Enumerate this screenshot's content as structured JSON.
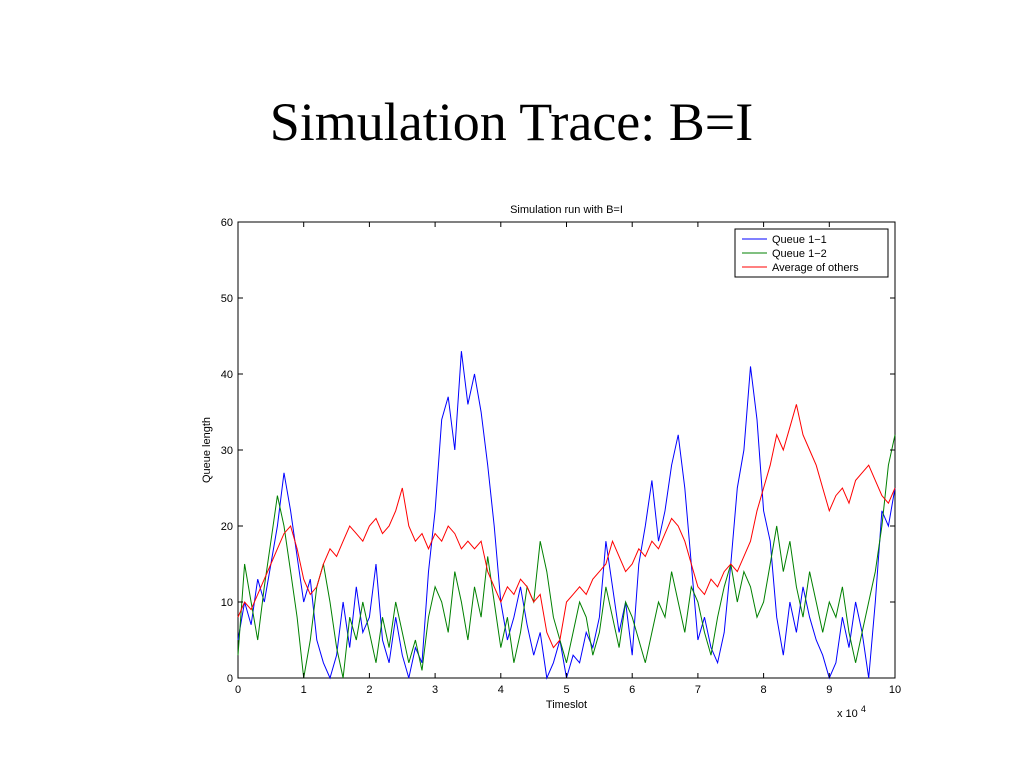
{
  "slide": {
    "title": "Simulation Trace: B=I"
  },
  "chart_data": {
    "type": "line",
    "title": "Simulation run with B=I",
    "xlabel": "Timeslot",
    "ylabel": "Queue length",
    "x_multiplier_label": "x 10",
    "x_multiplier_exponent": "4",
    "xlim": [
      0,
      10
    ],
    "ylim": [
      0,
      60
    ],
    "xticks": [
      0,
      1,
      2,
      3,
      4,
      5,
      6,
      7,
      8,
      9,
      10
    ],
    "yticks": [
      0,
      10,
      20,
      30,
      40,
      50,
      60
    ],
    "grid": false,
    "legend_position": "top-right",
    "series": [
      {
        "name": "Queue 1−1",
        "color": "#0000ff",
        "points": [
          [
            0,
            5
          ],
          [
            0.1,
            10
          ],
          [
            0.2,
            7
          ],
          [
            0.3,
            13
          ],
          [
            0.4,
            10
          ],
          [
            0.5,
            15
          ],
          [
            0.6,
            20
          ],
          [
            0.7,
            27
          ],
          [
            0.8,
            22
          ],
          [
            0.9,
            16
          ],
          [
            1.0,
            10
          ],
          [
            1.1,
            13
          ],
          [
            1.2,
            5
          ],
          [
            1.3,
            2
          ],
          [
            1.4,
            0
          ],
          [
            1.5,
            3
          ],
          [
            1.6,
            10
          ],
          [
            1.7,
            4
          ],
          [
            1.8,
            12
          ],
          [
            1.9,
            6
          ],
          [
            2.0,
            8
          ],
          [
            2.1,
            15
          ],
          [
            2.2,
            5
          ],
          [
            2.3,
            2
          ],
          [
            2.4,
            8
          ],
          [
            2.5,
            3
          ],
          [
            2.6,
            0
          ],
          [
            2.7,
            4
          ],
          [
            2.8,
            2
          ],
          [
            2.9,
            14
          ],
          [
            3.0,
            22
          ],
          [
            3.1,
            34
          ],
          [
            3.2,
            37
          ],
          [
            3.3,
            30
          ],
          [
            3.4,
            43
          ],
          [
            3.5,
            36
          ],
          [
            3.6,
            40
          ],
          [
            3.7,
            35
          ],
          [
            3.8,
            28
          ],
          [
            3.9,
            20
          ],
          [
            4.0,
            10
          ],
          [
            4.1,
            5
          ],
          [
            4.2,
            8
          ],
          [
            4.3,
            12
          ],
          [
            4.4,
            7
          ],
          [
            4.5,
            3
          ],
          [
            4.6,
            6
          ],
          [
            4.7,
            0
          ],
          [
            4.8,
            2
          ],
          [
            4.9,
            5
          ],
          [
            5.0,
            0
          ],
          [
            5.1,
            3
          ],
          [
            5.2,
            2
          ],
          [
            5.3,
            6
          ],
          [
            5.4,
            4
          ],
          [
            5.5,
            8
          ],
          [
            5.6,
            18
          ],
          [
            5.7,
            12
          ],
          [
            5.8,
            6
          ],
          [
            5.9,
            10
          ],
          [
            6.0,
            3
          ],
          [
            6.1,
            15
          ],
          [
            6.2,
            20
          ],
          [
            6.3,
            26
          ],
          [
            6.4,
            18
          ],
          [
            6.5,
            22
          ],
          [
            6.6,
            28
          ],
          [
            6.7,
            32
          ],
          [
            6.8,
            25
          ],
          [
            6.9,
            15
          ],
          [
            7.0,
            5
          ],
          [
            7.1,
            8
          ],
          [
            7.2,
            4
          ],
          [
            7.3,
            2
          ],
          [
            7.4,
            6
          ],
          [
            7.5,
            15
          ],
          [
            7.6,
            25
          ],
          [
            7.7,
            30
          ],
          [
            7.8,
            41
          ],
          [
            7.9,
            34
          ],
          [
            8.0,
            22
          ],
          [
            8.1,
            18
          ],
          [
            8.2,
            8
          ],
          [
            8.3,
            3
          ],
          [
            8.4,
            10
          ],
          [
            8.5,
            6
          ],
          [
            8.6,
            12
          ],
          [
            8.7,
            8
          ],
          [
            8.8,
            5
          ],
          [
            8.9,
            3
          ],
          [
            9.0,
            0
          ],
          [
            9.1,
            2
          ],
          [
            9.2,
            8
          ],
          [
            9.3,
            4
          ],
          [
            9.4,
            10
          ],
          [
            9.5,
            6
          ],
          [
            9.6,
            0
          ],
          [
            9.7,
            10
          ],
          [
            9.8,
            22
          ],
          [
            9.9,
            20
          ],
          [
            10.0,
            25
          ]
        ]
      },
      {
        "name": "Queue 1−2",
        "color": "#008000",
        "points": [
          [
            0,
            3
          ],
          [
            0.1,
            15
          ],
          [
            0.2,
            10
          ],
          [
            0.3,
            5
          ],
          [
            0.4,
            12
          ],
          [
            0.5,
            18
          ],
          [
            0.6,
            24
          ],
          [
            0.7,
            20
          ],
          [
            0.8,
            14
          ],
          [
            0.9,
            8
          ],
          [
            1.0,
            0
          ],
          [
            1.1,
            5
          ],
          [
            1.2,
            12
          ],
          [
            1.3,
            15
          ],
          [
            1.4,
            10
          ],
          [
            1.5,
            4
          ],
          [
            1.6,
            0
          ],
          [
            1.7,
            8
          ],
          [
            1.8,
            5
          ],
          [
            1.9,
            10
          ],
          [
            2.0,
            6
          ],
          [
            2.1,
            2
          ],
          [
            2.2,
            8
          ],
          [
            2.3,
            4
          ],
          [
            2.4,
            10
          ],
          [
            2.5,
            6
          ],
          [
            2.6,
            2
          ],
          [
            2.7,
            5
          ],
          [
            2.8,
            1
          ],
          [
            2.9,
            8
          ],
          [
            3.0,
            12
          ],
          [
            3.1,
            10
          ],
          [
            3.2,
            6
          ],
          [
            3.3,
            14
          ],
          [
            3.4,
            10
          ],
          [
            3.5,
            5
          ],
          [
            3.6,
            12
          ],
          [
            3.7,
            8
          ],
          [
            3.8,
            16
          ],
          [
            3.9,
            10
          ],
          [
            4.0,
            4
          ],
          [
            4.1,
            8
          ],
          [
            4.2,
            2
          ],
          [
            4.3,
            6
          ],
          [
            4.4,
            12
          ],
          [
            4.5,
            10
          ],
          [
            4.6,
            18
          ],
          [
            4.7,
            14
          ],
          [
            4.8,
            8
          ],
          [
            4.9,
            5
          ],
          [
            5.0,
            2
          ],
          [
            5.1,
            6
          ],
          [
            5.2,
            10
          ],
          [
            5.3,
            8
          ],
          [
            5.4,
            3
          ],
          [
            5.5,
            6
          ],
          [
            5.6,
            12
          ],
          [
            5.7,
            8
          ],
          [
            5.8,
            4
          ],
          [
            5.9,
            10
          ],
          [
            6.0,
            8
          ],
          [
            6.1,
            5
          ],
          [
            6.2,
            2
          ],
          [
            6.3,
            6
          ],
          [
            6.4,
            10
          ],
          [
            6.5,
            8
          ],
          [
            6.6,
            14
          ],
          [
            6.7,
            10
          ],
          [
            6.8,
            6
          ],
          [
            6.9,
            12
          ],
          [
            7.0,
            10
          ],
          [
            7.1,
            6
          ],
          [
            7.2,
            3
          ],
          [
            7.3,
            8
          ],
          [
            7.4,
            12
          ],
          [
            7.5,
            15
          ],
          [
            7.6,
            10
          ],
          [
            7.7,
            14
          ],
          [
            7.8,
            12
          ],
          [
            7.9,
            8
          ],
          [
            8.0,
            10
          ],
          [
            8.1,
            15
          ],
          [
            8.2,
            20
          ],
          [
            8.3,
            14
          ],
          [
            8.4,
            18
          ],
          [
            8.5,
            12
          ],
          [
            8.6,
            8
          ],
          [
            8.7,
            14
          ],
          [
            8.8,
            10
          ],
          [
            8.9,
            6
          ],
          [
            9.0,
            10
          ],
          [
            9.1,
            8
          ],
          [
            9.2,
            12
          ],
          [
            9.3,
            6
          ],
          [
            9.4,
            2
          ],
          [
            9.5,
            6
          ],
          [
            9.6,
            10
          ],
          [
            9.7,
            14
          ],
          [
            9.8,
            20
          ],
          [
            9.9,
            28
          ],
          [
            10.0,
            32
          ]
        ]
      },
      {
        "name": "Average of others",
        "color": "#ff0000",
        "points": [
          [
            0,
            8
          ],
          [
            0.1,
            10
          ],
          [
            0.2,
            9
          ],
          [
            0.3,
            11
          ],
          [
            0.4,
            13
          ],
          [
            0.5,
            15
          ],
          [
            0.6,
            17
          ],
          [
            0.7,
            19
          ],
          [
            0.8,
            20
          ],
          [
            0.9,
            17
          ],
          [
            1.0,
            13
          ],
          [
            1.1,
            11
          ],
          [
            1.2,
            12
          ],
          [
            1.3,
            15
          ],
          [
            1.4,
            17
          ],
          [
            1.5,
            16
          ],
          [
            1.6,
            18
          ],
          [
            1.7,
            20
          ],
          [
            1.8,
            19
          ],
          [
            1.9,
            18
          ],
          [
            2.0,
            20
          ],
          [
            2.1,
            21
          ],
          [
            2.2,
            19
          ],
          [
            2.3,
            20
          ],
          [
            2.4,
            22
          ],
          [
            2.5,
            25
          ],
          [
            2.6,
            20
          ],
          [
            2.7,
            18
          ],
          [
            2.8,
            19
          ],
          [
            2.9,
            17
          ],
          [
            3.0,
            19
          ],
          [
            3.1,
            18
          ],
          [
            3.2,
            20
          ],
          [
            3.3,
            19
          ],
          [
            3.4,
            17
          ],
          [
            3.5,
            18
          ],
          [
            3.6,
            17
          ],
          [
            3.7,
            18
          ],
          [
            3.8,
            14
          ],
          [
            3.9,
            12
          ],
          [
            4.0,
            10
          ],
          [
            4.1,
            12
          ],
          [
            4.2,
            11
          ],
          [
            4.3,
            13
          ],
          [
            4.4,
            12
          ],
          [
            4.5,
            10
          ],
          [
            4.6,
            11
          ],
          [
            4.7,
            6
          ],
          [
            4.8,
            4
          ],
          [
            4.9,
            5
          ],
          [
            5.0,
            10
          ],
          [
            5.1,
            11
          ],
          [
            5.2,
            12
          ],
          [
            5.3,
            11
          ],
          [
            5.4,
            13
          ],
          [
            5.5,
            14
          ],
          [
            5.6,
            15
          ],
          [
            5.7,
            18
          ],
          [
            5.8,
            16
          ],
          [
            5.9,
            14
          ],
          [
            6.0,
            15
          ],
          [
            6.1,
            17
          ],
          [
            6.2,
            16
          ],
          [
            6.3,
            18
          ],
          [
            6.4,
            17
          ],
          [
            6.5,
            19
          ],
          [
            6.6,
            21
          ],
          [
            6.7,
            20
          ],
          [
            6.8,
            18
          ],
          [
            6.9,
            15
          ],
          [
            7.0,
            12
          ],
          [
            7.1,
            11
          ],
          [
            7.2,
            13
          ],
          [
            7.3,
            12
          ],
          [
            7.4,
            14
          ],
          [
            7.5,
            15
          ],
          [
            7.6,
            14
          ],
          [
            7.7,
            16
          ],
          [
            7.8,
            18
          ],
          [
            7.9,
            22
          ],
          [
            8.0,
            25
          ],
          [
            8.1,
            28
          ],
          [
            8.2,
            32
          ],
          [
            8.3,
            30
          ],
          [
            8.4,
            33
          ],
          [
            8.5,
            36
          ],
          [
            8.6,
            32
          ],
          [
            8.7,
            30
          ],
          [
            8.8,
            28
          ],
          [
            8.9,
            25
          ],
          [
            9.0,
            22
          ],
          [
            9.1,
            24
          ],
          [
            9.2,
            25
          ],
          [
            9.3,
            23
          ],
          [
            9.4,
            26
          ],
          [
            9.5,
            27
          ],
          [
            9.6,
            28
          ],
          [
            9.7,
            26
          ],
          [
            9.8,
            24
          ],
          [
            9.9,
            23
          ],
          [
            10.0,
            25
          ]
        ]
      }
    ]
  }
}
